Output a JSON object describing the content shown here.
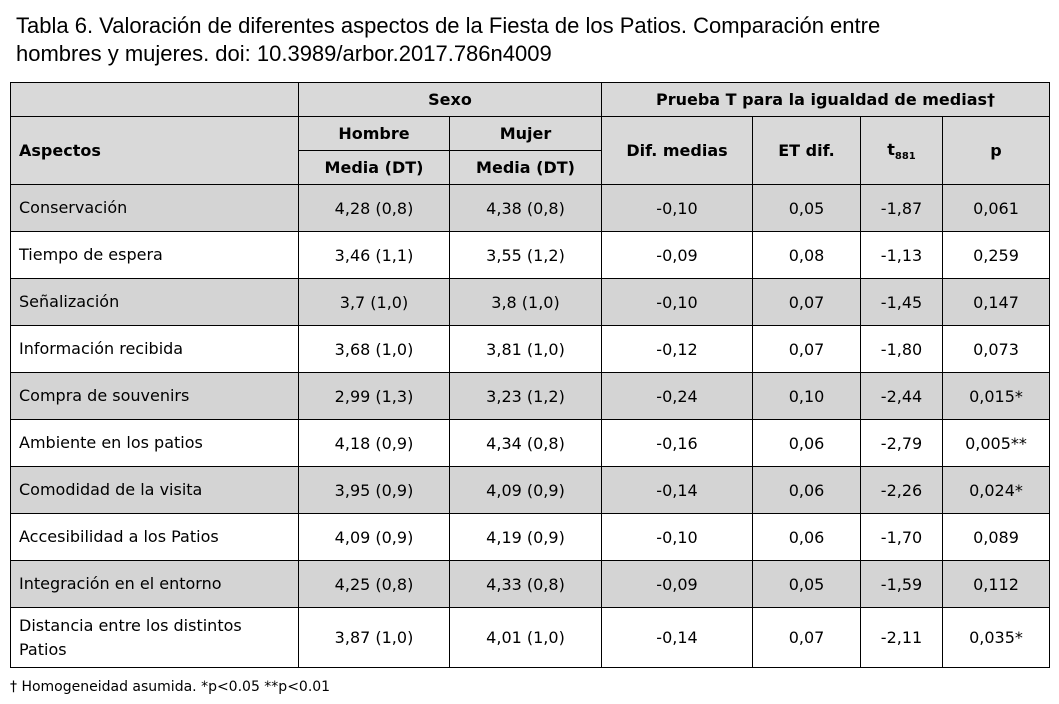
{
  "caption_line1": "Tabla 6. Valoración de diferentes aspectos de la Fiesta de los Patios. Comparación entre",
  "caption_line2": "hombres y mujeres. doi: 10.3989/arbor.2017.786n4009",
  "headers": {
    "sexo": "Sexo",
    "prueba": "Prueba T para la igualdad de medias†",
    "aspectos": "Aspectos",
    "hombre": "Hombre",
    "mujer": "Mujer",
    "media_dt_h": "Media (DT)",
    "media_dt_m": "Media (DT)",
    "dif_medias": "Dif. medias",
    "et_dif": "ET dif.",
    "t": "t",
    "t_sub": "881",
    "p": "p"
  },
  "rows": [
    {
      "aspecto": "Conservación",
      "hombre": "4,28 (0,8)",
      "mujer": "4,38 (0,8)",
      "dif": "-0,10",
      "et": "0,05",
      "t": "-1,87",
      "p": "0,061"
    },
    {
      "aspecto": "Tiempo de espera",
      "hombre": "3,46 (1,1)",
      "mujer": "3,55 (1,2)",
      "dif": "-0,09",
      "et": "0,08",
      "t": "-1,13",
      "p": "0,259"
    },
    {
      "aspecto": "Señalización",
      "hombre": "3,7 (1,0)",
      "mujer": "3,8 (1,0)",
      "dif": "-0,10",
      "et": "0,07",
      "t": "-1,45",
      "p": "0,147"
    },
    {
      "aspecto": "Información recibida",
      "hombre": "3,68 (1,0)",
      "mujer": "3,81 (1,0)",
      "dif": "-0,12",
      "et": "0,07",
      "t": "-1,80",
      "p": "0,073"
    },
    {
      "aspecto": "Compra de souvenirs",
      "hombre": "2,99 (1,3)",
      "mujer": "3,23 (1,2)",
      "dif": "-0,24",
      "et": "0,10",
      "t": "-2,44",
      "p": "0,015*"
    },
    {
      "aspecto": "Ambiente en los patios",
      "hombre": "4,18 (0,9)",
      "mujer": "4,34 (0,8)",
      "dif": "-0,16",
      "et": "0,06",
      "t": "-2,79",
      "p": "0,005**"
    },
    {
      "aspecto": "Comodidad de la visita",
      "hombre": "3,95 (0,9)",
      "mujer": "4,09 (0,9)",
      "dif": "-0,14",
      "et": "0,06",
      "t": "-2,26",
      "p": "0,024*"
    },
    {
      "aspecto": "Accesibilidad a los Patios",
      "hombre": "4,09 (0,9)",
      "mujer": "4,19 (0,9)",
      "dif": "-0,10",
      "et": "0,06",
      "t": "-1,70",
      "p": "0,089"
    },
    {
      "aspecto": "Integración en el entorno",
      "hombre": "4,25 (0,8)",
      "mujer": "4,33 (0,8)",
      "dif": "-0,09",
      "et": "0,05",
      "t": "-1,59",
      "p": "0,112"
    },
    {
      "aspecto": "Distancia entre los distintos Patios",
      "hombre": "3,87 (1,0)",
      "mujer": "4,01 (1,0)",
      "dif": "-0,14",
      "et": "0,07",
      "t": "-2,11",
      "p": "0,035*"
    }
  ],
  "footnote": "† Homogeneidad asumida. *p<0.05 **p<0.01"
}
